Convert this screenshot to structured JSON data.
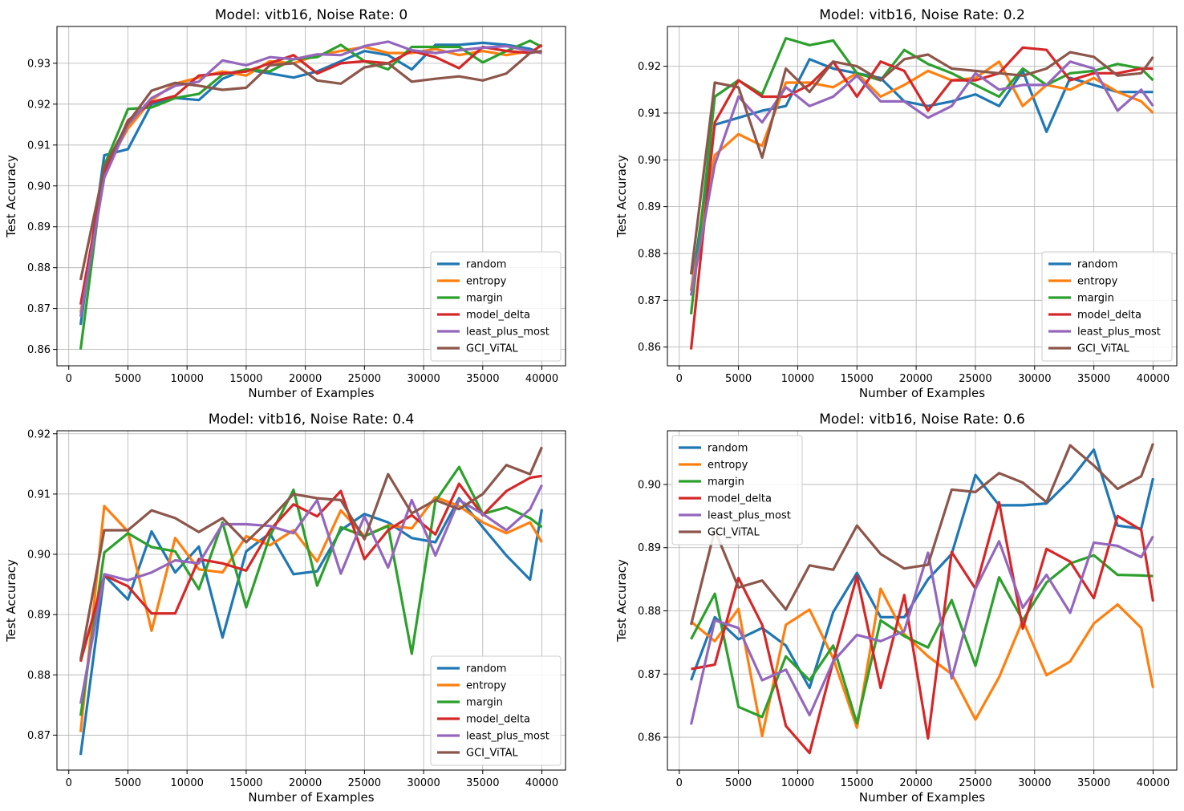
{
  "colors": {
    "random": "#1f77b4",
    "entropy": "#ff7f0e",
    "margin": "#2ca02c",
    "model_delta": "#d62728",
    "least_plus_most": "#9467bd",
    "GCI_ViTAL": "#8c564b",
    "grid": "#b0b0b0"
  },
  "chart_data": [
    {
      "type": "line",
      "title": "Model: vitb16, Noise Rate: 0",
      "xlabel": "Number of Examples",
      "ylabel": "Test Accuracy",
      "xlim": [
        -1000,
        42000
      ],
      "ylim": [
        0.856,
        0.939
      ],
      "xticks": [
        0,
        5000,
        10000,
        15000,
        20000,
        25000,
        30000,
        35000,
        40000
      ],
      "yticks": [
        0.86,
        0.87,
        0.88,
        0.89,
        0.9,
        0.91,
        0.92,
        0.93
      ],
      "ytick_decimals": 2,
      "grid": true,
      "legend_position": "lower-right",
      "x": [
        1000,
        3000,
        5000,
        7000,
        9000,
        11000,
        13000,
        15000,
        17000,
        19000,
        21000,
        23000,
        25000,
        27000,
        29000,
        31000,
        33000,
        35000,
        37000,
        39000,
        40000
      ],
      "series": [
        {
          "name": "random",
          "values": [
            0.866,
            0.9075,
            0.909,
            0.92,
            0.9215,
            0.921,
            0.9262,
            0.9285,
            0.9275,
            0.9265,
            0.928,
            0.9305,
            0.933,
            0.932,
            0.9285,
            0.9345,
            0.9345,
            0.935,
            0.9345,
            0.9335,
            0.9325
          ]
        },
        {
          "name": "entropy",
          "values": [
            0.869,
            0.904,
            0.914,
            0.921,
            0.925,
            0.9265,
            0.928,
            0.927,
            0.9305,
            0.93,
            0.932,
            0.933,
            0.934,
            0.9325,
            0.9325,
            0.9335,
            0.932,
            0.933,
            0.932,
            0.933,
            0.9325
          ]
        },
        {
          "name": "margin",
          "values": [
            0.86,
            0.905,
            0.9188,
            0.9192,
            0.9215,
            0.9225,
            0.9272,
            0.9285,
            0.928,
            0.931,
            0.9315,
            0.9345,
            0.9305,
            0.9285,
            0.934,
            0.934,
            0.934,
            0.9302,
            0.933,
            0.9355,
            0.934
          ]
        },
        {
          "name": "model_delta",
          "values": [
            0.871,
            0.903,
            0.916,
            0.9205,
            0.922,
            0.927,
            0.9275,
            0.928,
            0.93,
            0.932,
            0.9275,
            0.93,
            0.9305,
            0.93,
            0.933,
            0.9315,
            0.9288,
            0.934,
            0.933,
            0.9325,
            0.9345
          ]
        },
        {
          "name": "least_plus_most",
          "values": [
            0.868,
            0.902,
            0.915,
            0.9215,
            0.9245,
            0.9255,
            0.9307,
            0.9295,
            0.9315,
            0.931,
            0.9322,
            0.932,
            0.9342,
            0.9353,
            0.9332,
            0.9325,
            0.9332,
            0.9338,
            0.9342,
            0.933,
            0.9325
          ]
        },
        {
          "name": "GCI_ViTAL",
          "values": [
            0.877,
            0.9045,
            0.9155,
            0.9233,
            0.9252,
            0.9245,
            0.9235,
            0.924,
            0.9295,
            0.93,
            0.9258,
            0.925,
            0.929,
            0.93,
            0.9255,
            0.9262,
            0.9268,
            0.9258,
            0.9275,
            0.9325,
            0.933
          ]
        }
      ]
    },
    {
      "type": "line",
      "title": "Model: vitb16, Noise Rate: 0.2",
      "xlabel": "Number of Examples",
      "ylabel": "Test Accuracy",
      "xlim": [
        -1000,
        42000
      ],
      "ylim": [
        0.856,
        0.9285
      ],
      "xticks": [
        0,
        5000,
        10000,
        15000,
        20000,
        25000,
        30000,
        35000,
        40000
      ],
      "yticks": [
        0.86,
        0.87,
        0.88,
        0.89,
        0.9,
        0.91,
        0.92
      ],
      "ytick_decimals": 2,
      "grid": true,
      "legend_position": "lower-right",
      "x": [
        1000,
        3000,
        5000,
        7000,
        9000,
        11000,
        13000,
        15000,
        17000,
        19000,
        21000,
        23000,
        25000,
        27000,
        29000,
        31000,
        33000,
        35000,
        37000,
        39000,
        40000
      ],
      "series": [
        {
          "name": "random",
          "values": [
            0.872,
            0.9075,
            0.909,
            0.9105,
            0.9115,
            0.9215,
            0.9195,
            0.9185,
            0.9175,
            0.9125,
            0.9115,
            0.9125,
            0.914,
            0.9115,
            0.919,
            0.906,
            0.9175,
            0.916,
            0.9145,
            0.9145,
            0.9145
          ]
        },
        {
          "name": "entropy",
          "values": [
            0.872,
            0.901,
            0.9055,
            0.903,
            0.9165,
            0.9165,
            0.9155,
            0.9185,
            0.9135,
            0.916,
            0.919,
            0.917,
            0.9175,
            0.921,
            0.9115,
            0.916,
            0.915,
            0.9175,
            0.9145,
            0.9125,
            0.91
          ]
        },
        {
          "name": "margin",
          "values": [
            0.867,
            0.9135,
            0.917,
            0.914,
            0.926,
            0.9245,
            0.9255,
            0.9185,
            0.917,
            0.9235,
            0.9205,
            0.9185,
            0.916,
            0.9135,
            0.9195,
            0.916,
            0.9185,
            0.919,
            0.9205,
            0.9195,
            0.917
          ]
        },
        {
          "name": "model_delta",
          "values": [
            0.8595,
            0.908,
            0.917,
            0.9135,
            0.9135,
            0.916,
            0.921,
            0.9135,
            0.921,
            0.919,
            0.9105,
            0.917,
            0.917,
            0.9185,
            0.924,
            0.9235,
            0.917,
            0.9185,
            0.9185,
            0.9195,
            0.9195
          ]
        },
        {
          "name": "least_plus_most",
          "values": [
            0.871,
            0.899,
            0.9135,
            0.908,
            0.9155,
            0.9115,
            0.9135,
            0.918,
            0.9125,
            0.9125,
            0.909,
            0.9115,
            0.9185,
            0.915,
            0.916,
            0.916,
            0.921,
            0.9195,
            0.9105,
            0.915,
            0.9115
          ]
        },
        {
          "name": "GCI_ViTAL",
          "values": [
            0.8755,
            0.9165,
            0.9155,
            0.9005,
            0.9195,
            0.9145,
            0.921,
            0.92,
            0.917,
            0.9215,
            0.9225,
            0.9195,
            0.919,
            0.9185,
            0.918,
            0.9195,
            0.923,
            0.922,
            0.918,
            0.9185,
            0.922
          ]
        }
      ]
    },
    {
      "type": "line",
      "title": "Model: vitb16, Noise Rate: 0.4",
      "xlabel": "Number of Examples",
      "ylabel": "Test Accuracy",
      "xlim": [
        -1000,
        42000
      ],
      "ylim": [
        0.8642,
        0.9205
      ],
      "xticks": [
        0,
        5000,
        10000,
        15000,
        20000,
        25000,
        30000,
        35000,
        40000
      ],
      "yticks": [
        0.87,
        0.88,
        0.89,
        0.9,
        0.91,
        0.92
      ],
      "ytick_decimals": 2,
      "grid": true,
      "legend_position": "lower-right",
      "x": [
        1000,
        3000,
        5000,
        7000,
        9000,
        11000,
        13000,
        15000,
        17000,
        19000,
        21000,
        23000,
        25000,
        27000,
        29000,
        31000,
        33000,
        35000,
        37000,
        39000,
        40000
      ],
      "series": [
        {
          "name": "random",
          "values": [
            0.8667,
            0.8965,
            0.8925,
            0.9038,
            0.897,
            0.9013,
            0.8862,
            0.9005,
            0.9035,
            0.8967,
            0.8972,
            0.904,
            0.9067,
            0.9053,
            0.9027,
            0.902,
            0.9093,
            0.9045,
            0.8998,
            0.8958,
            0.9075
          ]
        },
        {
          "name": "entropy",
          "values": [
            0.8705,
            0.908,
            0.9038,
            0.8873,
            0.9027,
            0.8975,
            0.897,
            0.903,
            0.9015,
            0.904,
            0.8988,
            0.9073,
            0.903,
            0.9048,
            0.9043,
            0.9095,
            0.908,
            0.9053,
            0.9035,
            0.9053,
            0.902
          ]
        },
        {
          "name": "margin",
          "values": [
            0.8732,
            0.9003,
            0.9035,
            0.9012,
            0.9005,
            0.8942,
            0.9053,
            0.8912,
            0.903,
            0.9107,
            0.8948,
            0.9045,
            0.903,
            0.9047,
            0.8835,
            0.9088,
            0.9145,
            0.9067,
            0.9078,
            0.906,
            0.9045
          ]
        },
        {
          "name": "model_delta",
          "values": [
            0.8822,
            0.8965,
            0.8947,
            0.8902,
            0.8902,
            0.8992,
            0.8985,
            0.8973,
            0.904,
            0.9083,
            0.9063,
            0.9105,
            0.8992,
            0.904,
            0.9065,
            0.9033,
            0.9117,
            0.9065,
            0.9105,
            0.9127,
            0.913
          ]
        },
        {
          "name": "least_plus_most",
          "values": [
            0.8752,
            0.8967,
            0.8957,
            0.897,
            0.899,
            0.8985,
            0.905,
            0.905,
            0.9047,
            0.9035,
            0.909,
            0.8968,
            0.9063,
            0.8978,
            0.909,
            0.8998,
            0.909,
            0.9067,
            0.904,
            0.9075,
            0.9115
          ]
        },
        {
          "name": "GCI_ViTAL",
          "values": [
            0.8825,
            0.904,
            0.904,
            0.9073,
            0.906,
            0.9037,
            0.906,
            0.902,
            0.9058,
            0.91,
            0.9093,
            0.909,
            0.9025,
            0.9133,
            0.9068,
            0.909,
            0.9075,
            0.91,
            0.9148,
            0.9133,
            0.9178
          ]
        }
      ]
    },
    {
      "type": "line",
      "title": "Model: vitb16, Noise Rate: 0.6",
      "xlabel": "Number of Examples",
      "ylabel": "Test Accuracy",
      "xlim": [
        -1000,
        42000
      ],
      "ylim": [
        0.8548,
        0.9085
      ],
      "xticks": [
        0,
        5000,
        10000,
        15000,
        20000,
        25000,
        30000,
        35000,
        40000
      ],
      "yticks": [
        0.86,
        0.87,
        0.88,
        0.89,
        0.9
      ],
      "ytick_decimals": 2,
      "grid": true,
      "legend_position": "upper-left",
      "x": [
        1000,
        3000,
        5000,
        7000,
        9000,
        11000,
        13000,
        15000,
        17000,
        19000,
        21000,
        23000,
        25000,
        27000,
        29000,
        31000,
        33000,
        35000,
        37000,
        39000,
        40000
      ],
      "series": [
        {
          "name": "random",
          "values": [
            0.869,
            0.879,
            0.8755,
            0.8773,
            0.8745,
            0.8678,
            0.8798,
            0.886,
            0.879,
            0.879,
            0.885,
            0.889,
            0.9015,
            0.8967,
            0.8967,
            0.897,
            0.9007,
            0.9055,
            0.8935,
            0.893,
            0.901
          ]
        },
        {
          "name": "entropy",
          "values": [
            0.8783,
            0.8752,
            0.8803,
            0.8602,
            0.8778,
            0.8802,
            0.8725,
            0.8615,
            0.8835,
            0.8763,
            0.8728,
            0.87,
            0.8628,
            0.8695,
            0.8785,
            0.8698,
            0.872,
            0.878,
            0.881,
            0.8773,
            0.8678
          ]
        },
        {
          "name": "margin",
          "values": [
            0.8755,
            0.8827,
            0.8648,
            0.8632,
            0.8728,
            0.869,
            0.8745,
            0.8622,
            0.8785,
            0.876,
            0.8742,
            0.8817,
            0.8713,
            0.8853,
            0.8785,
            0.8845,
            0.8875,
            0.8888,
            0.8857,
            0.8856,
            0.8855
          ]
        },
        {
          "name": "model_delta",
          "values": [
            0.8708,
            0.8715,
            0.8852,
            0.8778,
            0.8618,
            0.8575,
            0.872,
            0.8855,
            0.8678,
            0.8825,
            0.8598,
            0.8893,
            0.8835,
            0.8972,
            0.8772,
            0.8898,
            0.8878,
            0.882,
            0.895,
            0.8928,
            0.8815
          ]
        },
        {
          "name": "least_plus_most",
          "values": [
            0.862,
            0.8785,
            0.8773,
            0.869,
            0.8707,
            0.8635,
            0.872,
            0.8762,
            0.8752,
            0.8768,
            0.8892,
            0.8693,
            0.8835,
            0.891,
            0.8805,
            0.8857,
            0.8797,
            0.8908,
            0.8903,
            0.8885,
            0.8918
          ]
        },
        {
          "name": "GCI_ViTAL",
          "values": [
            0.8778,
            0.8928,
            0.8837,
            0.8848,
            0.8802,
            0.8872,
            0.8865,
            0.8935,
            0.889,
            0.8867,
            0.8873,
            0.8992,
            0.8988,
            0.9018,
            0.9003,
            0.8972,
            0.9062,
            0.903,
            0.8993,
            0.9013,
            0.9065
          ]
        }
      ]
    }
  ]
}
